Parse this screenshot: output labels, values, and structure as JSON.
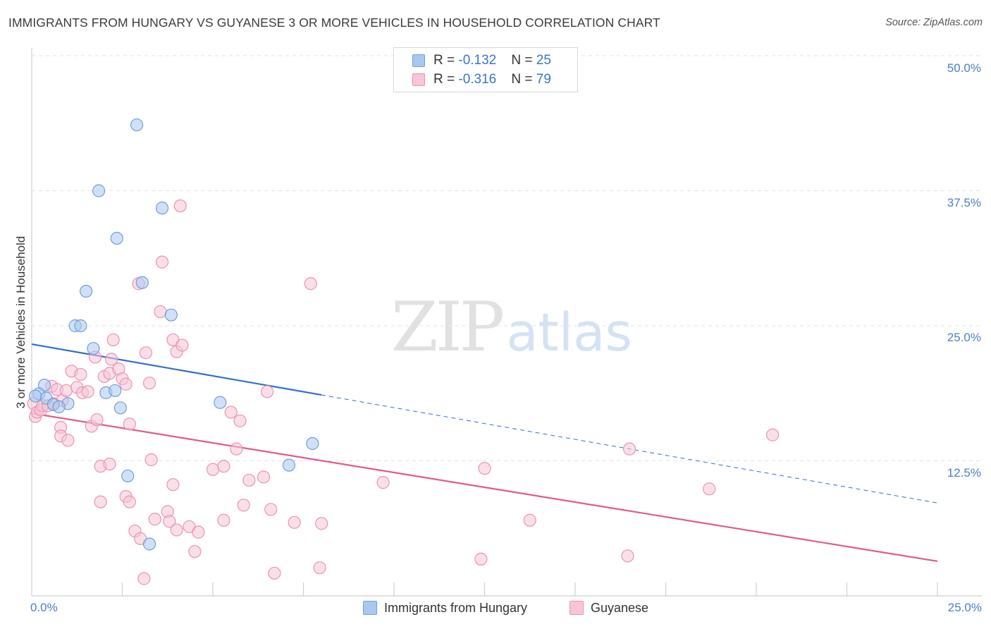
{
  "chart_data": {
    "type": "scatter",
    "title": "IMMIGRANTS FROM HUNGARY VS GUYANESE 3 OR MORE VEHICLES IN HOUSEHOLD CORRELATION CHART",
    "source": "Source: ZipAtlas.com",
    "xlabel": "",
    "ylabel": "3 or more Vehicles in Household",
    "xlim": [
      0,
      25
    ],
    "ylim": [
      0,
      50
    ],
    "x_tick_labels": {
      "left": "0.0%",
      "right": "25.0%"
    },
    "y_ticks": [
      {
        "value": 12.5,
        "label": "12.5%"
      },
      {
        "value": 25,
        "label": "25.0%"
      },
      {
        "value": 37.5,
        "label": "37.5%"
      },
      {
        "value": 50,
        "label": "50.0%"
      }
    ],
    "grid": true,
    "legend_position": "top-center",
    "watermark": {
      "zip": "ZIP",
      "atlas": "atlas"
    },
    "series": [
      {
        "name": "Immigrants from Hungary",
        "color": "#a9c8f0",
        "stroke": "#6f9fd8",
        "line_color": "#2f6fcd",
        "r_label": "R = ",
        "r_value": "-0.132",
        "n_label": "N = ",
        "n_value": "25",
        "trend": {
          "x0": 0,
          "y0": 23.3,
          "x1": 8.0,
          "y1": 18.6,
          "dash_to_x": 25.0,
          "dash_to_y": 8.6
        },
        "points": [
          [
            2.9,
            43.6
          ],
          [
            1.85,
            37.5
          ],
          [
            3.6,
            35.9
          ],
          [
            2.35,
            33.1
          ],
          [
            1.5,
            28.2
          ],
          [
            3.05,
            29.0
          ],
          [
            3.85,
            26.0
          ],
          [
            1.2,
            25.0
          ],
          [
            1.35,
            25.0
          ],
          [
            1.7,
            22.9
          ],
          [
            0.35,
            19.5
          ],
          [
            0.2,
            18.7
          ],
          [
            0.4,
            18.3
          ],
          [
            0.1,
            18.5
          ],
          [
            0.6,
            17.7
          ],
          [
            1.0,
            17.8
          ],
          [
            0.75,
            17.5
          ],
          [
            2.05,
            18.8
          ],
          [
            2.3,
            19.0
          ],
          [
            2.45,
            17.4
          ],
          [
            5.2,
            17.9
          ],
          [
            7.75,
            14.1
          ],
          [
            7.1,
            12.1
          ],
          [
            2.65,
            11.1
          ],
          [
            3.25,
            4.8
          ]
        ]
      },
      {
        "name": "Guyanese",
        "color": "#f7c5d6",
        "stroke": "#e993b2",
        "line_color": "#e2598b",
        "r_label": "R = ",
        "r_value": "-0.316",
        "n_label": "N = ",
        "n_value": "79",
        "trend": {
          "x0": 0,
          "y0": 16.9,
          "x1": 25.0,
          "y1": 3.2
        },
        "points": [
          [
            0.05,
            17.8
          ],
          [
            0.1,
            16.6
          ],
          [
            0.15,
            17.0
          ],
          [
            0.25,
            17.2
          ],
          [
            0.3,
            17.6
          ],
          [
            0.45,
            17.6
          ],
          [
            0.55,
            19.4
          ],
          [
            0.6,
            17.8
          ],
          [
            0.7,
            19.1
          ],
          [
            0.85,
            18.1
          ],
          [
            0.95,
            19.0
          ],
          [
            0.8,
            15.6
          ],
          [
            0.8,
            14.8
          ],
          [
            1.0,
            14.4
          ],
          [
            1.1,
            20.8
          ],
          [
            1.25,
            19.3
          ],
          [
            1.35,
            20.5
          ],
          [
            1.4,
            18.8
          ],
          [
            1.55,
            18.9
          ],
          [
            1.65,
            15.7
          ],
          [
            1.75,
            22.1
          ],
          [
            1.8,
            16.3
          ],
          [
            2.0,
            20.3
          ],
          [
            2.15,
            20.6
          ],
          [
            2.2,
            21.9
          ],
          [
            2.25,
            23.7
          ],
          [
            2.4,
            21.0
          ],
          [
            2.5,
            20.1
          ],
          [
            2.6,
            19.6
          ],
          [
            2.7,
            15.9
          ],
          [
            2.95,
            28.9
          ],
          [
            3.15,
            22.5
          ],
          [
            3.25,
            19.7
          ],
          [
            3.3,
            12.6
          ],
          [
            3.55,
            26.3
          ],
          [
            3.6,
            30.9
          ],
          [
            3.9,
            23.7
          ],
          [
            4.0,
            22.6
          ],
          [
            4.15,
            23.2
          ],
          [
            4.1,
            36.1
          ],
          [
            1.9,
            12.0
          ],
          [
            2.15,
            12.2
          ],
          [
            1.9,
            8.7
          ],
          [
            2.6,
            9.2
          ],
          [
            2.7,
            8.7
          ],
          [
            2.85,
            6.0
          ],
          [
            3.0,
            5.3
          ],
          [
            3.1,
            1.6
          ],
          [
            3.4,
            7.1
          ],
          [
            3.75,
            7.8
          ],
          [
            3.9,
            10.3
          ],
          [
            3.8,
            6.9
          ],
          [
            4.0,
            6.1
          ],
          [
            4.35,
            6.4
          ],
          [
            4.5,
            4.1
          ],
          [
            4.6,
            5.9
          ],
          [
            5.0,
            11.7
          ],
          [
            5.3,
            12.0
          ],
          [
            5.5,
            17.0
          ],
          [
            5.65,
            13.6
          ],
          [
            5.75,
            16.2
          ],
          [
            5.3,
            7.0
          ],
          [
            5.85,
            8.4
          ],
          [
            6.0,
            10.7
          ],
          [
            6.4,
            11.0
          ],
          [
            6.5,
            18.9
          ],
          [
            6.6,
            8.0
          ],
          [
            6.7,
            2.1
          ],
          [
            7.25,
            6.8
          ],
          [
            7.7,
            28.9
          ],
          [
            7.95,
            2.6
          ],
          [
            8.0,
            6.7
          ],
          [
            9.7,
            10.5
          ],
          [
            12.4,
            3.4
          ],
          [
            12.5,
            11.8
          ],
          [
            13.75,
            7.0
          ],
          [
            16.5,
            13.6
          ],
          [
            16.45,
            3.7
          ],
          [
            18.7,
            9.9
          ]
        ],
        "extra_points": [
          [
            20.45,
            14.9
          ]
        ]
      }
    ]
  }
}
